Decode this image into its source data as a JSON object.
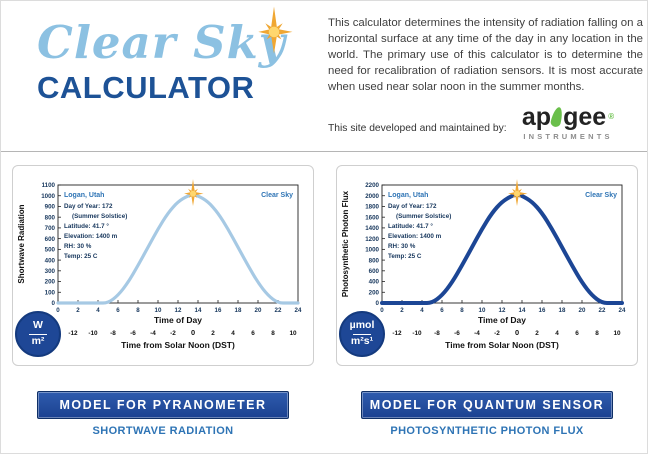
{
  "header": {
    "logo": {
      "script": "Clear Sky",
      "word": "CALCULATOR"
    },
    "description": "This calculator determines the intensity of radiation falling on a horizontal surface at any time of the day in any location in the world. The primary use of this calculator is to determine the need for recalibration of radiation sensors. It is most accurate when used near solar noon in the summer months.",
    "maintained_by": "This site developed and maintained by:",
    "apogee": {
      "part1": "ap",
      "part2": "gee",
      "registered": "®",
      "sub": "INSTRUMENTS"
    }
  },
  "panels": [
    {
      "button": "MODEL FOR PYRANOMETER",
      "caption": "SHORTWAVE RADIATION",
      "unit_top": "W",
      "unit_bottom": "m²"
    },
    {
      "button": "MODEL FOR QUANTUM SENSOR",
      "caption": "PHOTOSYNTHETIC PHOTON FLUX",
      "unit_top": "µmol",
      "unit_bottom": "m²s¹"
    }
  ],
  "colors": {
    "navy": "#1e4796",
    "light_blue": "#8cc1e2",
    "caption_blue": "#2e74b5",
    "leaf_green": "#6abf4b",
    "sun_orange": "#f0a733"
  },
  "chart_data": [
    {
      "type": "line",
      "location": "Logan, Utah",
      "legend": "Clear Sky",
      "annotations": [
        {
          "text": "Day of Year: 172",
          "indent": 0
        },
        {
          "text": "(Summer Solstice)",
          "indent": 8
        },
        {
          "text": "Latitude: 41.7 °",
          "indent": 0
        },
        {
          "text": "Elevation: 1400 m",
          "indent": 0
        },
        {
          "text": "RH: 30 %",
          "indent": 0
        },
        {
          "text": "Temp: 25 C",
          "indent": 0
        }
      ],
      "ylabel": "Shortwave Radiation",
      "xlabel": "Time of Day",
      "xlabel2": "Time from Solar Noon (DST)",
      "ylim": [
        0,
        1100
      ],
      "ytick_step": 100,
      "xlim": [
        0,
        24
      ],
      "xtick_step": 2,
      "x2_ticks": [
        -12,
        -10,
        -8,
        -6,
        -4,
        -2,
        0,
        2,
        4,
        6,
        8,
        10
      ],
      "solar_noon": 13.5,
      "x": [
        0,
        2,
        4,
        5,
        6,
        7,
        8,
        9,
        10,
        11,
        12,
        13,
        13.5,
        14,
        15,
        16,
        17,
        18,
        19,
        20,
        21,
        22,
        23,
        24
      ],
      "y": [
        0,
        0,
        0,
        0,
        70,
        190,
        350,
        520,
        690,
        840,
        945,
        1000,
        1010,
        1000,
        945,
        840,
        690,
        520,
        350,
        190,
        70,
        0,
        0,
        0
      ],
      "peak": {
        "x": 13.5,
        "y": 1010
      },
      "line_color": "#a6c9e4",
      "line_width": 3.2
    },
    {
      "type": "line",
      "location": "Logan, Utah",
      "legend": "Clear Sky",
      "annotations": [
        {
          "text": "Day of Year: 172",
          "indent": 0
        },
        {
          "text": "(Summer Solstice)",
          "indent": 8
        },
        {
          "text": "Latitude: 41.7 °",
          "indent": 0
        },
        {
          "text": "Elevation: 1400 m",
          "indent": 0
        },
        {
          "text": "RH: 30 %",
          "indent": 0
        },
        {
          "text": "Temp: 25 C",
          "indent": 0
        }
      ],
      "ylabel": "Photosynthetic Photon Flux",
      "xlabel": "Time of Day",
      "xlabel2": "Time from Solar Noon (DST)",
      "ylim": [
        0,
        2200
      ],
      "ytick_step": 200,
      "xlim": [
        0,
        24
      ],
      "xtick_step": 2,
      "x2_ticks": [
        -12,
        -10,
        -8,
        -6,
        -4,
        -2,
        0,
        2,
        4,
        6,
        8,
        10
      ],
      "solar_noon": 13.5,
      "x": [
        0,
        2,
        4,
        5,
        6,
        7,
        8,
        9,
        10,
        11,
        12,
        13,
        13.5,
        14,
        15,
        16,
        17,
        18,
        19,
        20,
        21,
        22,
        23,
        24
      ],
      "y": [
        0,
        0,
        0,
        0,
        140,
        380,
        700,
        1040,
        1380,
        1680,
        1890,
        2000,
        2020,
        2000,
        1890,
        1680,
        1380,
        1040,
        700,
        380,
        140,
        0,
        0,
        0
      ],
      "peak": {
        "x": 13.5,
        "y": 2020
      },
      "line_color": "#1c4695",
      "line_width": 4
    }
  ]
}
